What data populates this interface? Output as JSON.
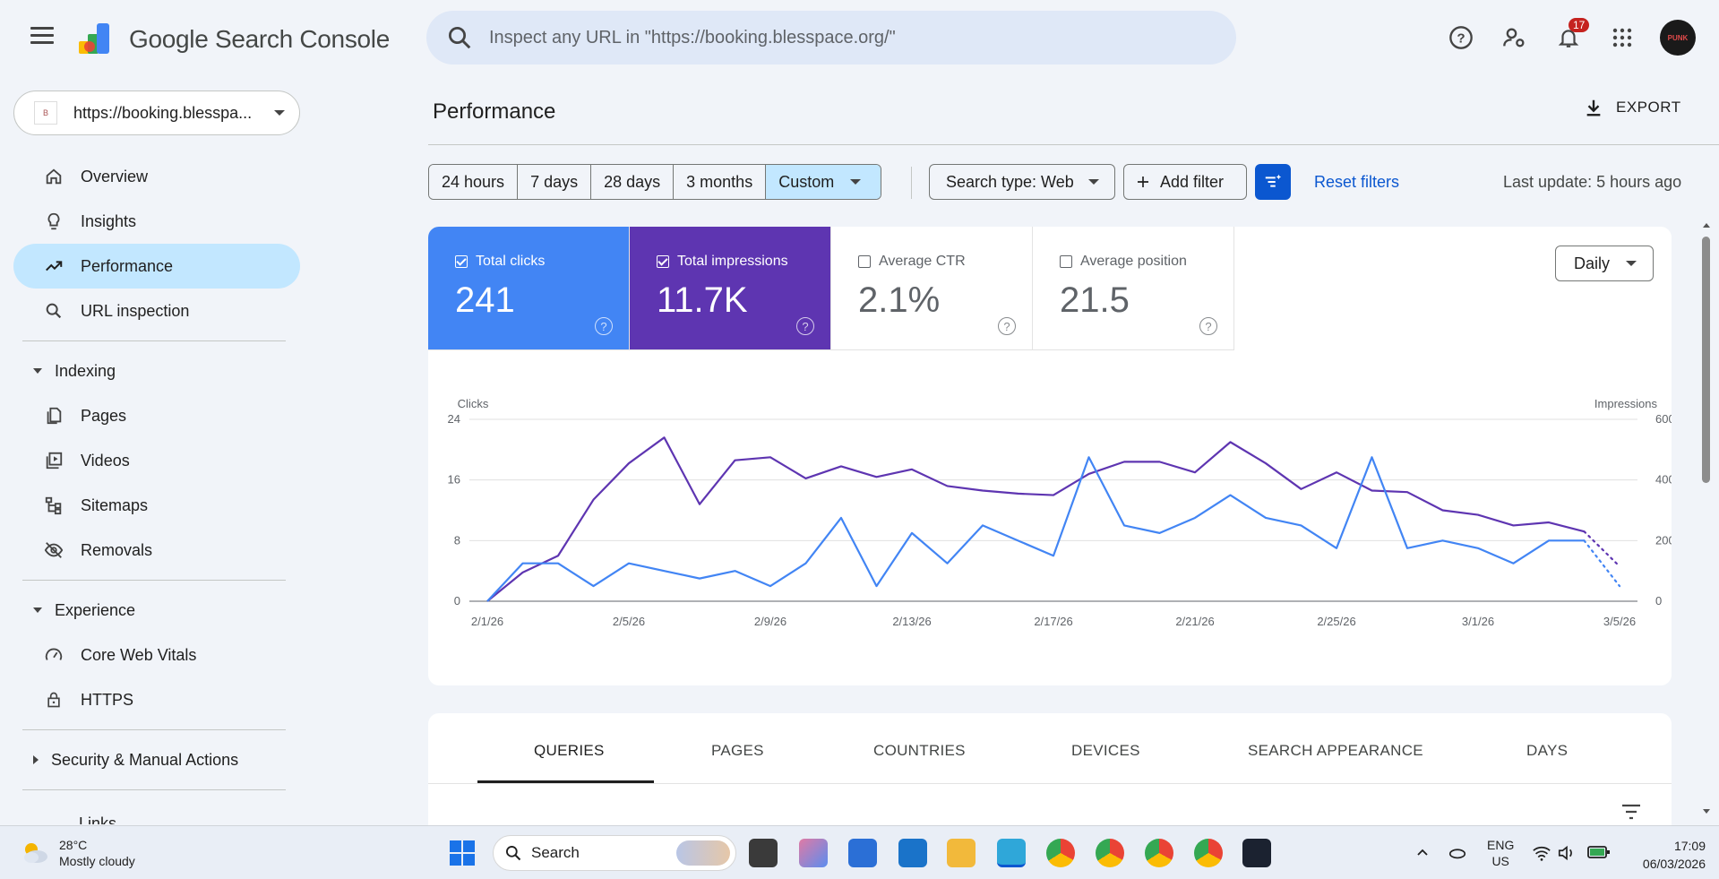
{
  "app": {
    "product_name": "Google Search Console",
    "search_placeholder": "Inspect any URL in \"https://booking.blesspace.org/\"",
    "notification_count": "17",
    "avatar_text": "PUNK"
  },
  "sidebar": {
    "property": "https://booking.blesspa...",
    "property_favicon": "B",
    "items": [
      {
        "label": "Overview",
        "icon": "home-icon"
      },
      {
        "label": "Insights",
        "icon": "lightbulb-icon"
      },
      {
        "label": "Performance",
        "icon": "trending-up-icon",
        "active": true
      },
      {
        "label": "URL inspection",
        "icon": "search-icon"
      }
    ],
    "indexing": {
      "label": "Indexing",
      "items": [
        {
          "label": "Pages",
          "icon": "pages-icon"
        },
        {
          "label": "Videos",
          "icon": "video-icon"
        },
        {
          "label": "Sitemaps",
          "icon": "sitemap-icon"
        },
        {
          "label": "Removals",
          "icon": "eye-off-icon"
        }
      ]
    },
    "experience": {
      "label": "Experience",
      "items": [
        {
          "label": "Core Web Vitals",
          "icon": "speedometer-icon"
        },
        {
          "label": "HTTPS",
          "icon": "lock-icon"
        }
      ]
    },
    "security": {
      "label": "Security & Manual Actions"
    },
    "links_partial": "Links"
  },
  "header": {
    "title": "Performance",
    "export_label": "EXPORT"
  },
  "filters": {
    "ranges": [
      "24 hours",
      "7 days",
      "28 days",
      "3 months",
      "Custom"
    ],
    "selected_range": "Custom",
    "search_type": "Search type: Web",
    "add_filter": "Add filter",
    "reset": "Reset filters",
    "last_update": "Last update: 5 hours ago"
  },
  "metrics": [
    {
      "label": "Total clicks",
      "value": "241",
      "checked": true,
      "color": "#4285f4"
    },
    {
      "label": "Total impressions",
      "value": "11.7K",
      "checked": true,
      "color": "#5e35b1"
    },
    {
      "label": "Average CTR",
      "value": "2.1%",
      "checked": false,
      "color": "#ffffff"
    },
    {
      "label": "Average position",
      "value": "21.5",
      "checked": false,
      "color": "#ffffff"
    }
  ],
  "granularity": "Daily",
  "chart_data": {
    "type": "line",
    "y_left_label": "Clicks",
    "y_right_label": "Impressions",
    "y_left_ticks": [
      "24",
      "16",
      "8",
      "0"
    ],
    "y_right_ticks": [
      "600",
      "400",
      "200",
      "0"
    ],
    "ylim_left": [
      0,
      24
    ],
    "ylim_right": [
      0,
      600
    ],
    "x_tick_labels": [
      "2/1/26",
      "2/5/26",
      "2/9/26",
      "2/13/26",
      "2/17/26",
      "2/21/26",
      "2/25/26",
      "3/1/26",
      "3/5/26"
    ],
    "x": [
      "2/1/26",
      "2/2/26",
      "2/3/26",
      "2/4/26",
      "2/5/26",
      "2/6/26",
      "2/7/26",
      "2/8/26",
      "2/9/26",
      "2/10/26",
      "2/11/26",
      "2/12/26",
      "2/13/26",
      "2/14/26",
      "2/15/26",
      "2/16/26",
      "2/17/26",
      "2/18/26",
      "2/19/26",
      "2/20/26",
      "2/21/26",
      "2/22/26",
      "2/23/26",
      "2/24/26",
      "2/25/26",
      "2/26/26",
      "2/27/26",
      "2/28/26",
      "3/1/26",
      "3/2/26",
      "3/3/26",
      "3/4/26",
      "3/5/26"
    ],
    "series": [
      {
        "name": "Clicks",
        "axis": "left",
        "color": "#4285f4",
        "values": [
          0,
          5,
          5,
          2,
          5,
          4,
          3,
          4,
          2,
          5,
          11,
          2,
          9,
          5,
          10,
          8,
          6,
          19,
          10,
          9,
          11,
          14,
          11,
          10,
          7,
          19,
          7,
          8,
          7,
          5,
          8,
          8,
          2
        ],
        "partial_from_index": 31
      },
      {
        "name": "Impressions",
        "axis": "right",
        "color": "#5e35b1",
        "values": [
          0,
          95,
          150,
          335,
          455,
          540,
          320,
          465,
          475,
          405,
          445,
          410,
          435,
          380,
          365,
          355,
          350,
          420,
          460,
          460,
          425,
          525,
          455,
          370,
          425,
          365,
          360,
          300,
          285,
          250,
          260,
          230,
          115
        ],
        "partial_from_index": 31
      }
    ]
  },
  "tabs": [
    "QUERIES",
    "PAGES",
    "COUNTRIES",
    "DEVICES",
    "SEARCH APPEARANCE",
    "DAYS"
  ],
  "selected_tab": "QUERIES",
  "taskbar": {
    "temperature": "28°C",
    "weather": "Mostly cloudy",
    "search": "Search",
    "lang_top": "ENG",
    "lang_bottom": "US",
    "time": "17:09",
    "date": "06/03/2026"
  }
}
